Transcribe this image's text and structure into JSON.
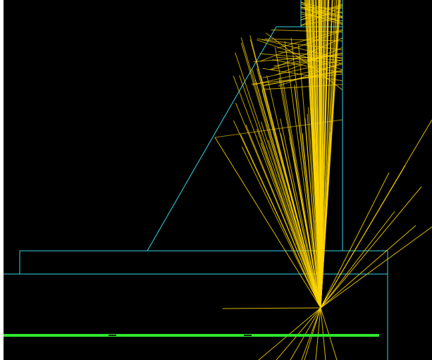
{
  "scene": {
    "background_color": "#000000",
    "outline_color": "#33d6e8",
    "rays_color": "#ffd700",
    "bar_color": "#2ee62e",
    "bar_marker_color": "#0b2a0b"
  }
}
